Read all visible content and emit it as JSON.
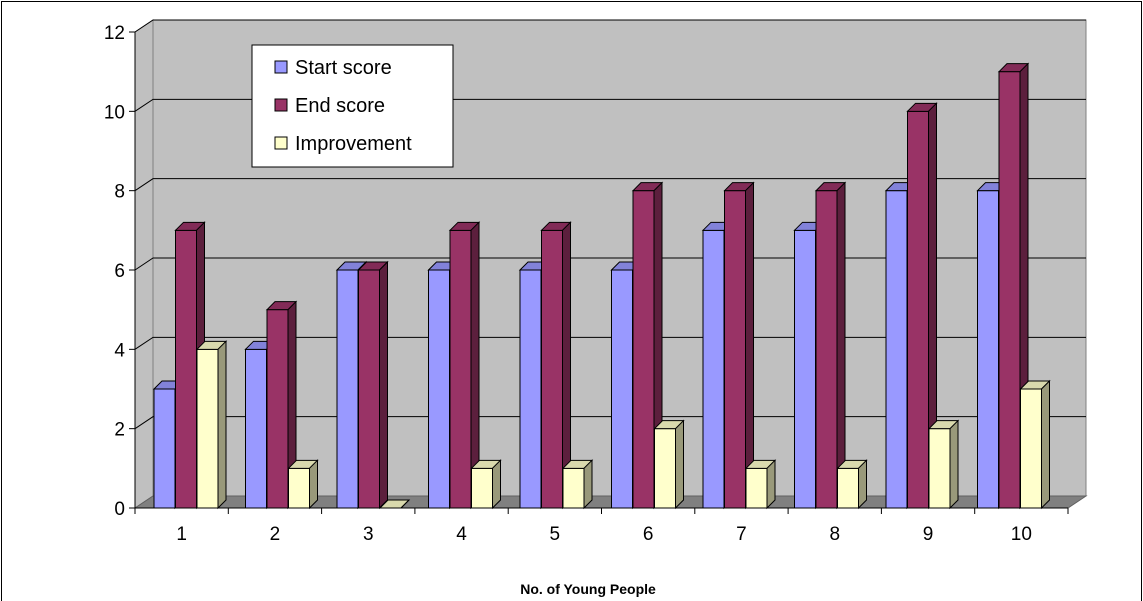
{
  "chart_data": {
    "type": "bar",
    "categories": [
      "1",
      "2",
      "3",
      "4",
      "5",
      "6",
      "7",
      "8",
      "9",
      "10"
    ],
    "series": [
      {
        "name": "Start score",
        "color": "#9999ff",
        "values": [
          3,
          4,
          6,
          6,
          6,
          6,
          7,
          7,
          8,
          8
        ]
      },
      {
        "name": "End score",
        "color": "#993366",
        "values": [
          7,
          5,
          6,
          7,
          7,
          8,
          8,
          8,
          10,
          11
        ]
      },
      {
        "name": "Improvement",
        "color": "#ffffcc",
        "values": [
          4,
          1,
          0,
          1,
          1,
          2,
          1,
          1,
          2,
          3
        ]
      }
    ],
    "title": "",
    "xlabel": "No. of Young People",
    "ylabel": "",
    "ylim": [
      0,
      12
    ],
    "yticks": [
      "0",
      "2",
      "4",
      "6",
      "8",
      "10",
      "12"
    ],
    "grid": true,
    "style": "3d-clustered-column",
    "legend_position": "top-left inside plot"
  }
}
